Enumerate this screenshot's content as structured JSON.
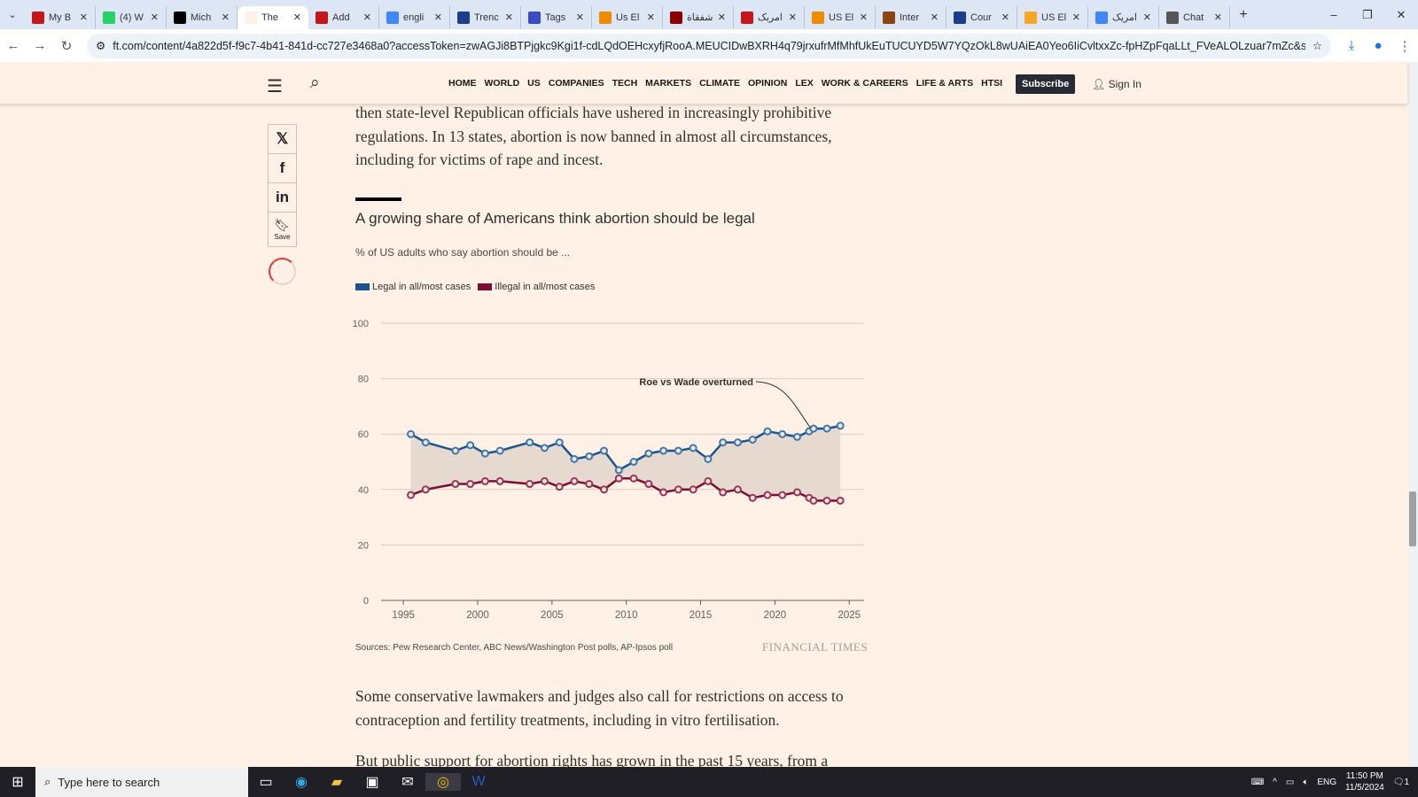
{
  "browser": {
    "tabs": [
      {
        "label": "My B",
        "color": "#c4161c"
      },
      {
        "label": "(4) W",
        "color": "#25d366"
      },
      {
        "label": "Mich",
        "color": "#000000"
      },
      {
        "label": "The",
        "color": "#fff1e5",
        "active": true
      },
      {
        "label": "Add",
        "color": "#c4161c"
      },
      {
        "label": "engli",
        "color": "#4285f4"
      },
      {
        "label": "Trenc",
        "color": "#1a3e8c"
      },
      {
        "label": "Tags",
        "color": "#3b4cc0"
      },
      {
        "label": "Us El",
        "color": "#f08c00"
      },
      {
        "label": "شفقاة",
        "color": "#8b0000"
      },
      {
        "label": "امریک",
        "color": "#c4161c"
      },
      {
        "label": "US El",
        "color": "#f08c00"
      },
      {
        "label": "Inter",
        "color": "#8b4513"
      },
      {
        "label": "Cour",
        "color": "#1a3e8c"
      },
      {
        "label": "US El",
        "color": "#f5a623"
      },
      {
        "label": "امریک",
        "color": "#4285f4"
      },
      {
        "label": "Chat",
        "color": "#555555"
      }
    ],
    "url": "ft.com/content/4a822d5f-f9c7-4b41-841d-cc727e3468a0?accessToken=zwAGJi8BTPjgkc9Kgi1f-cdLQdOEHcxyfjRooA.MEUCIDwBXRH4q79jrxufrMfMhfUkEuTUCUYD5W7YQzOkL8wUAiEA0Yeo6IiCvltxxZc-fpHZpFqaLLt_FVeALOLzuar7mZc&sharetype=gift&token..."
  },
  "header": {
    "nav": [
      "HOME",
      "WORLD",
      "US",
      "COMPANIES",
      "TECH",
      "MARKETS",
      "CLIMATE",
      "OPINION",
      "LEX",
      "WORK & CAREERS",
      "LIFE & ARTS",
      "HTSI"
    ],
    "subscribe": "Subscribe",
    "sign_in": "Sign In"
  },
  "share": {
    "save": "Save"
  },
  "article": {
    "para1": "then state-level Republican officials have ushered in increasingly prohibitive regulations. In 13 states, abortion is now banned in almost all circumstances, including for victims of rape and incest.",
    "para2": "Some conservative lawmakers and judges also call for restrictions on access to contraception and fertility treatments, including in vitro fertilisation.",
    "para3": "But public support for abortion rights has grown in the past 15 years, from a"
  },
  "chart_data": {
    "type": "line",
    "title": "A growing share of Americans think abortion should be legal",
    "subtitle": "% of US adults who say abortion should be ...",
    "annotation": "Roe vs Wade overturned",
    "source": "Sources: Pew Research Center, ABC News/Washington Post polls, AP-Ipsos poll",
    "brand": "FINANCIAL TIMES",
    "xlim": [
      1993.5,
      2026
    ],
    "ylim": [
      0,
      100
    ],
    "xticks": [
      1995,
      2000,
      2005,
      2010,
      2015,
      2020,
      2025
    ],
    "yticks": [
      0,
      20,
      40,
      60,
      80,
      100
    ],
    "grid": true,
    "legend_position": "top-left",
    "x": [
      1995.5,
      1996.5,
      1998.5,
      1999.5,
      2000.5,
      2001.5,
      2003.5,
      2004.5,
      2005.5,
      2006.5,
      2007.5,
      2008.5,
      2009.5,
      2010.5,
      2011.5,
      2012.5,
      2013.5,
      2014.5,
      2015.5,
      2016.5,
      2017.5,
      2018.5,
      2019.5,
      2020.5,
      2021.5,
      2022.3,
      2022.6,
      2023.5,
      2024.4
    ],
    "series": [
      {
        "name": "Legal in all/most cases",
        "color": "#1c5490",
        "values": [
          60,
          57,
          54,
          56,
          53,
          54,
          57,
          55,
          57,
          51,
          52,
          54,
          47,
          50,
          53,
          54,
          54,
          55,
          51,
          57,
          57,
          58,
          61,
          60,
          59,
          61,
          62,
          62,
          63
        ]
      },
      {
        "name": "Illegal in all/most cases",
        "color": "#7a0e33",
        "values": [
          38,
          40,
          42,
          42,
          43,
          43,
          42,
          43,
          41,
          43,
          42,
          40,
          44,
          44,
          42,
          39,
          40,
          40,
          43,
          39,
          40,
          37,
          38,
          38,
          39,
          37,
          36,
          36,
          36
        ]
      }
    ]
  },
  "taskbar": {
    "search_placeholder": "Type here to search",
    "lang": "ENG",
    "time": "11:50 PM",
    "date": "11/5/2024",
    "notif": "1"
  }
}
